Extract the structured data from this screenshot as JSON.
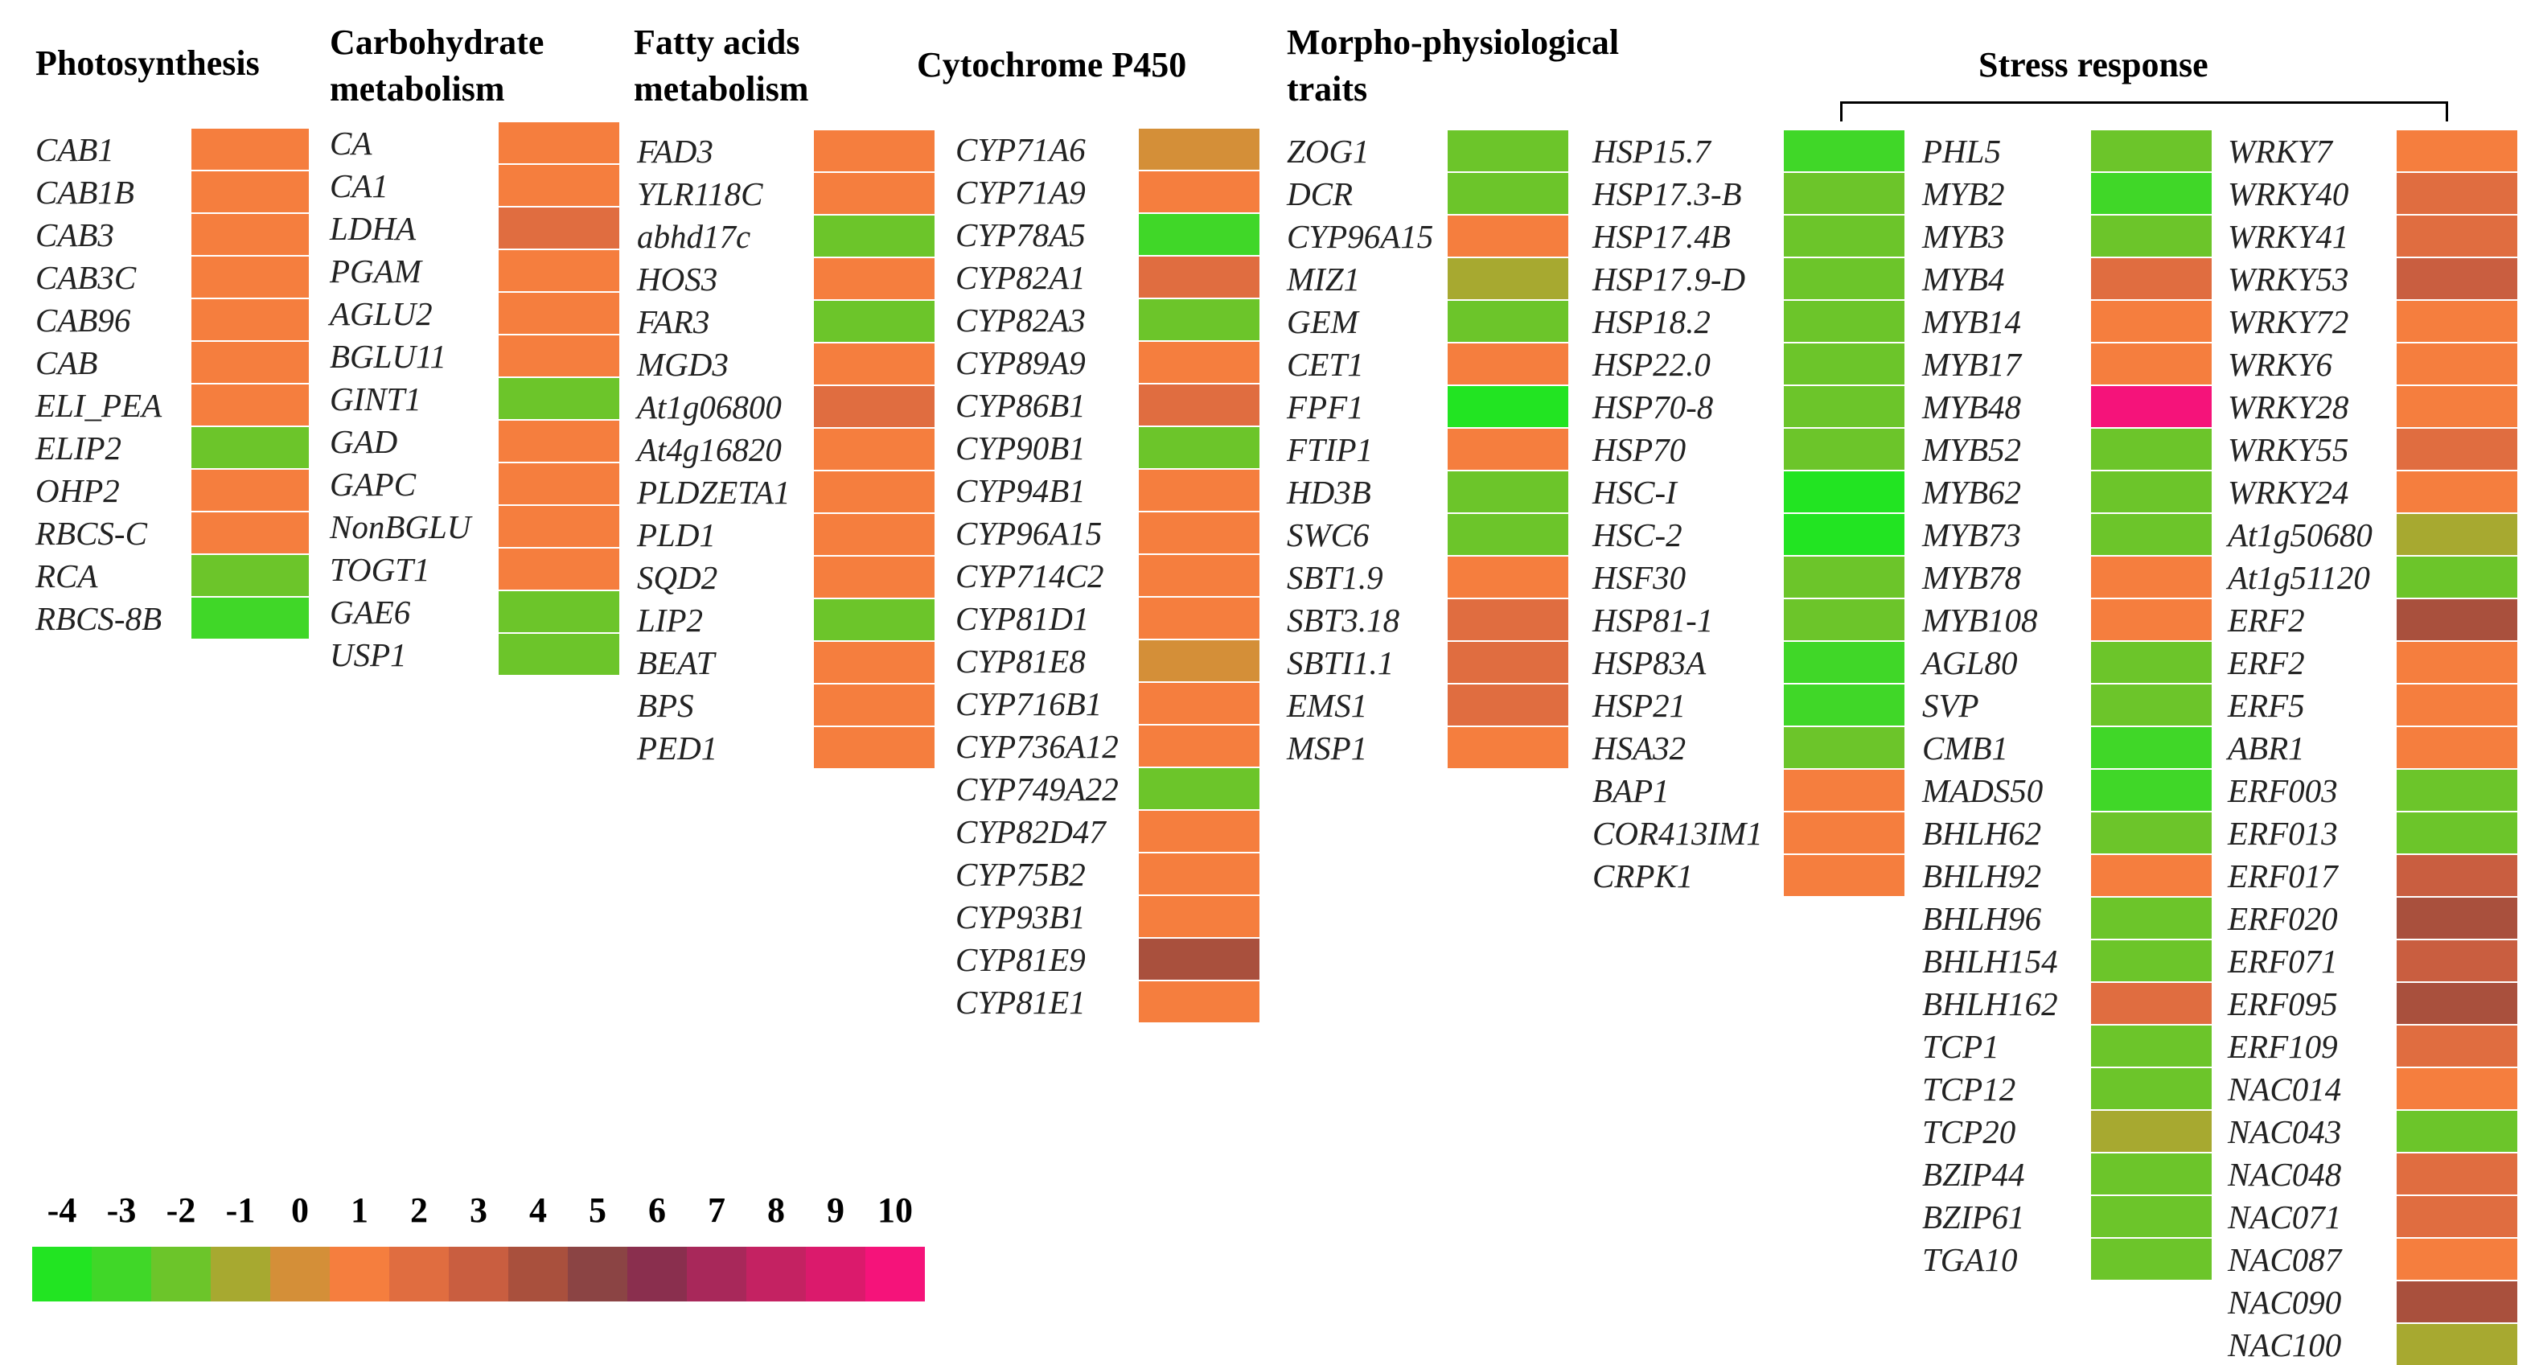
{
  "chart_data": {
    "type": "heatmap",
    "title": "",
    "legend": {
      "min": -4,
      "max": 10,
      "ticks": [
        "-4",
        "-3",
        "-2",
        "-1",
        "0",
        "1",
        "2",
        "3",
        "4",
        "5",
        "6",
        "7",
        "8",
        "9",
        "10"
      ],
      "colors": [
        "#22e422",
        "#40d728",
        "#6cc52a",
        "#a7a930",
        "#d48f38",
        "#f57e3e",
        "#e06d40",
        "#c95e40",
        "#a9503d",
        "#8b4444",
        "#8a2f4e",
        "#a8285a",
        "#c42262",
        "#db1a6c",
        "#f5137a"
      ]
    },
    "bracket_label": "Stress response",
    "groups": [
      {
        "id": "photo",
        "title": "Photosynthesis",
        "genes": [
          "CAB1",
          "CAB1B",
          "CAB3",
          "CAB3C",
          "CAB96",
          "CAB",
          "ELI_PEA",
          "ELIP2",
          "OHP2",
          "RBCS-C",
          "RCA",
          "RBCS-8B"
        ],
        "values": [
          1,
          1,
          1,
          1,
          1,
          1,
          1,
          -2,
          1,
          1,
          -2,
          -3
        ]
      },
      {
        "id": "carb",
        "title": "Carbohydrate\nmetabolism",
        "genes": [
          "CA",
          "CA1",
          "LDHA",
          "PGAM",
          "AGLU2",
          "BGLU11",
          "GINT1",
          "GAD",
          "GAPC",
          "NonBGLU",
          "TOGT1",
          "GAE6",
          "USP1"
        ],
        "values": [
          1,
          1,
          2,
          1,
          1,
          1,
          -2,
          1,
          1,
          1,
          1,
          -2,
          -2
        ]
      },
      {
        "id": "fatty",
        "title": "Fatty acids\nmetabolism",
        "genes": [
          "FAD3",
          "YLR118C",
          "abhd17c",
          "HOS3",
          "FAR3",
          "MGD3",
          "At1g06800",
          "At4g16820",
          "PLDZETA1",
          "PLD1",
          "SQD2",
          "LIP2",
          "BEAT",
          "BPS",
          "PED1"
        ],
        "values": [
          1,
          1,
          -2,
          1,
          -2,
          1,
          2,
          1,
          1,
          1,
          1,
          -2,
          1,
          1,
          1
        ]
      },
      {
        "id": "p450",
        "title": "Cytochrome P450",
        "genes": [
          "CYP71A6",
          "CYP71A9",
          "CYP78A5",
          "CYP82A1",
          "CYP82A3",
          "CYP89A9",
          "CYP86B1",
          "CYP90B1",
          "CYP94B1",
          "CYP96A15",
          "CYP714C2",
          "CYP81D1",
          "CYP81E8",
          "CYP716B1",
          "CYP736A12",
          "CYP749A22",
          "CYP82D47",
          "CYP75B2",
          "CYP93B1",
          "CYP81E9",
          "CYP81E1"
        ],
        "values": [
          0,
          1,
          -3,
          2,
          -2,
          1,
          2,
          -2,
          1,
          1,
          1,
          1,
          0,
          1,
          1,
          -2,
          1,
          1,
          1,
          4,
          1
        ]
      },
      {
        "id": "morpho",
        "title": "Morpho-physiological\ntraits",
        "genes": [
          "ZOG1",
          "DCR",
          "CYP96A15",
          "MIZ1",
          "GEM",
          "CET1",
          "FPF1",
          "FTIP1",
          "HD3B",
          "SWC6",
          "SBT1.9",
          "SBT3.18",
          "SBTI1.1",
          "EMS1",
          "MSP1"
        ],
        "values": [
          -2,
          -2,
          1,
          -1,
          -2,
          1,
          -4,
          1,
          -2,
          -2,
          1,
          2,
          2,
          2,
          1
        ]
      },
      {
        "id": "stress1",
        "title": "",
        "genes": [
          "HSP15.7",
          "HSP17.3-B",
          "HSP17.4B",
          "HSP17.9-D",
          "HSP18.2",
          "HSP22.0",
          "HSP70-8",
          "HSP70",
          "HSC-I",
          "HSC-2",
          "HSF30",
          "HSP81-1",
          "HSP83A",
          "HSP21",
          "HSA32",
          "BAP1",
          "COR413IM1",
          "CRPK1"
        ],
        "values": [
          -3,
          -2,
          -2,
          -2,
          -2,
          -2,
          -2,
          -2,
          -4,
          -4,
          -2,
          -2,
          -3,
          -3,
          -2,
          1,
          1,
          1
        ]
      },
      {
        "id": "stress2",
        "title": "",
        "genes": [
          "PHL5",
          "MYB2",
          "MYB3",
          "MYB4",
          "MYB14",
          "MYB17",
          "MYB48",
          "MYB52",
          "MYB62",
          "MYB73",
          "MYB78",
          "MYB108",
          "AGL80",
          "SVP",
          "CMB1",
          "MADS50",
          "BHLH62",
          "BHLH92",
          "BHLH96",
          "BHLH154",
          "BHLH162",
          "TCP1",
          "TCP12",
          "TCP20",
          "BZIP44",
          "BZIP61",
          "TGA10"
        ],
        "values": [
          -2,
          -3,
          -2,
          2,
          1,
          1,
          10,
          -2,
          -2,
          -2,
          1,
          1,
          -2,
          -2,
          -3,
          -3,
          -2,
          1,
          -2,
          -2,
          2,
          -2,
          -2,
          -1,
          -2,
          -2,
          -2
        ]
      },
      {
        "id": "stress3",
        "title": "",
        "genes": [
          "WRKY7",
          "WRKY40",
          "WRKY41",
          "WRKY53",
          "WRKY72",
          "WRKY6",
          "WRKY28",
          "WRKY55",
          "WRKY24",
          "At1g50680",
          "At1g51120",
          "ERF2",
          "ERF2",
          "ERF5",
          "ABR1",
          "ERF003",
          "ERF013",
          "ERF017",
          "ERF020",
          "ERF071",
          "ERF095",
          "ERF109",
          "NAC014",
          "NAC043",
          "NAC048",
          "NAC071",
          "NAC087",
          "NAC090",
          "NAC100"
        ],
        "values": [
          1,
          2,
          2,
          3,
          1,
          1,
          1,
          2,
          1,
          -1,
          -2,
          4,
          1,
          1,
          1,
          -2,
          -2,
          3,
          4,
          3,
          4,
          2,
          1,
          -2,
          2,
          2,
          1,
          4,
          -1
        ]
      }
    ]
  }
}
